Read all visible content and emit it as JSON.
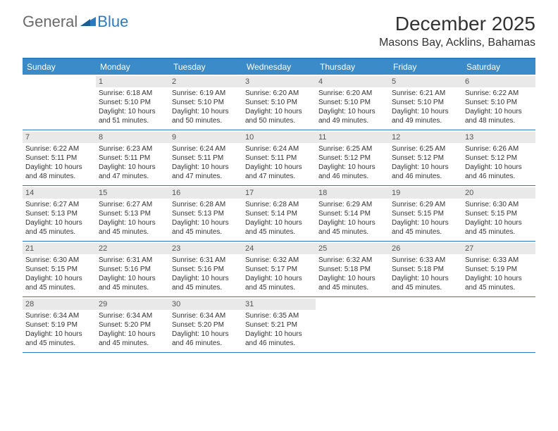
{
  "logo": {
    "general": "General",
    "blue": "Blue"
  },
  "title": "December 2025",
  "location": "Masons Bay, Acklins, Bahamas",
  "colors": {
    "header_bg": "#3b8bc9",
    "border": "#2a7bbf",
    "daynum_bg": "#e9e9e9",
    "text": "#333333",
    "logo_gray": "#6a6a6a",
    "logo_blue": "#2a7bbf"
  },
  "day_headers": [
    "Sunday",
    "Monday",
    "Tuesday",
    "Wednesday",
    "Thursday",
    "Friday",
    "Saturday"
  ],
  "weeks": [
    [
      {
        "n": "",
        "sr": "",
        "ss": "",
        "dl": ""
      },
      {
        "n": "1",
        "sr": "Sunrise: 6:18 AM",
        "ss": "Sunset: 5:10 PM",
        "dl": "Daylight: 10 hours and 51 minutes."
      },
      {
        "n": "2",
        "sr": "Sunrise: 6:19 AM",
        "ss": "Sunset: 5:10 PM",
        "dl": "Daylight: 10 hours and 50 minutes."
      },
      {
        "n": "3",
        "sr": "Sunrise: 6:20 AM",
        "ss": "Sunset: 5:10 PM",
        "dl": "Daylight: 10 hours and 50 minutes."
      },
      {
        "n": "4",
        "sr": "Sunrise: 6:20 AM",
        "ss": "Sunset: 5:10 PM",
        "dl": "Daylight: 10 hours and 49 minutes."
      },
      {
        "n": "5",
        "sr": "Sunrise: 6:21 AM",
        "ss": "Sunset: 5:10 PM",
        "dl": "Daylight: 10 hours and 49 minutes."
      },
      {
        "n": "6",
        "sr": "Sunrise: 6:22 AM",
        "ss": "Sunset: 5:10 PM",
        "dl": "Daylight: 10 hours and 48 minutes."
      }
    ],
    [
      {
        "n": "7",
        "sr": "Sunrise: 6:22 AM",
        "ss": "Sunset: 5:11 PM",
        "dl": "Daylight: 10 hours and 48 minutes."
      },
      {
        "n": "8",
        "sr": "Sunrise: 6:23 AM",
        "ss": "Sunset: 5:11 PM",
        "dl": "Daylight: 10 hours and 47 minutes."
      },
      {
        "n": "9",
        "sr": "Sunrise: 6:24 AM",
        "ss": "Sunset: 5:11 PM",
        "dl": "Daylight: 10 hours and 47 minutes."
      },
      {
        "n": "10",
        "sr": "Sunrise: 6:24 AM",
        "ss": "Sunset: 5:11 PM",
        "dl": "Daylight: 10 hours and 47 minutes."
      },
      {
        "n": "11",
        "sr": "Sunrise: 6:25 AM",
        "ss": "Sunset: 5:12 PM",
        "dl": "Daylight: 10 hours and 46 minutes."
      },
      {
        "n": "12",
        "sr": "Sunrise: 6:25 AM",
        "ss": "Sunset: 5:12 PM",
        "dl": "Daylight: 10 hours and 46 minutes."
      },
      {
        "n": "13",
        "sr": "Sunrise: 6:26 AM",
        "ss": "Sunset: 5:12 PM",
        "dl": "Daylight: 10 hours and 46 minutes."
      }
    ],
    [
      {
        "n": "14",
        "sr": "Sunrise: 6:27 AM",
        "ss": "Sunset: 5:13 PM",
        "dl": "Daylight: 10 hours and 45 minutes."
      },
      {
        "n": "15",
        "sr": "Sunrise: 6:27 AM",
        "ss": "Sunset: 5:13 PM",
        "dl": "Daylight: 10 hours and 45 minutes."
      },
      {
        "n": "16",
        "sr": "Sunrise: 6:28 AM",
        "ss": "Sunset: 5:13 PM",
        "dl": "Daylight: 10 hours and 45 minutes."
      },
      {
        "n": "17",
        "sr": "Sunrise: 6:28 AM",
        "ss": "Sunset: 5:14 PM",
        "dl": "Daylight: 10 hours and 45 minutes."
      },
      {
        "n": "18",
        "sr": "Sunrise: 6:29 AM",
        "ss": "Sunset: 5:14 PM",
        "dl": "Daylight: 10 hours and 45 minutes."
      },
      {
        "n": "19",
        "sr": "Sunrise: 6:29 AM",
        "ss": "Sunset: 5:15 PM",
        "dl": "Daylight: 10 hours and 45 minutes."
      },
      {
        "n": "20",
        "sr": "Sunrise: 6:30 AM",
        "ss": "Sunset: 5:15 PM",
        "dl": "Daylight: 10 hours and 45 minutes."
      }
    ],
    [
      {
        "n": "21",
        "sr": "Sunrise: 6:30 AM",
        "ss": "Sunset: 5:15 PM",
        "dl": "Daylight: 10 hours and 45 minutes."
      },
      {
        "n": "22",
        "sr": "Sunrise: 6:31 AM",
        "ss": "Sunset: 5:16 PM",
        "dl": "Daylight: 10 hours and 45 minutes."
      },
      {
        "n": "23",
        "sr": "Sunrise: 6:31 AM",
        "ss": "Sunset: 5:16 PM",
        "dl": "Daylight: 10 hours and 45 minutes."
      },
      {
        "n": "24",
        "sr": "Sunrise: 6:32 AM",
        "ss": "Sunset: 5:17 PM",
        "dl": "Daylight: 10 hours and 45 minutes."
      },
      {
        "n": "25",
        "sr": "Sunrise: 6:32 AM",
        "ss": "Sunset: 5:18 PM",
        "dl": "Daylight: 10 hours and 45 minutes."
      },
      {
        "n": "26",
        "sr": "Sunrise: 6:33 AM",
        "ss": "Sunset: 5:18 PM",
        "dl": "Daylight: 10 hours and 45 minutes."
      },
      {
        "n": "27",
        "sr": "Sunrise: 6:33 AM",
        "ss": "Sunset: 5:19 PM",
        "dl": "Daylight: 10 hours and 45 minutes."
      }
    ],
    [
      {
        "n": "28",
        "sr": "Sunrise: 6:34 AM",
        "ss": "Sunset: 5:19 PM",
        "dl": "Daylight: 10 hours and 45 minutes."
      },
      {
        "n": "29",
        "sr": "Sunrise: 6:34 AM",
        "ss": "Sunset: 5:20 PM",
        "dl": "Daylight: 10 hours and 45 minutes."
      },
      {
        "n": "30",
        "sr": "Sunrise: 6:34 AM",
        "ss": "Sunset: 5:20 PM",
        "dl": "Daylight: 10 hours and 46 minutes."
      },
      {
        "n": "31",
        "sr": "Sunrise: 6:35 AM",
        "ss": "Sunset: 5:21 PM",
        "dl": "Daylight: 10 hours and 46 minutes."
      },
      {
        "n": "",
        "sr": "",
        "ss": "",
        "dl": ""
      },
      {
        "n": "",
        "sr": "",
        "ss": "",
        "dl": ""
      },
      {
        "n": "",
        "sr": "",
        "ss": "",
        "dl": ""
      }
    ]
  ]
}
